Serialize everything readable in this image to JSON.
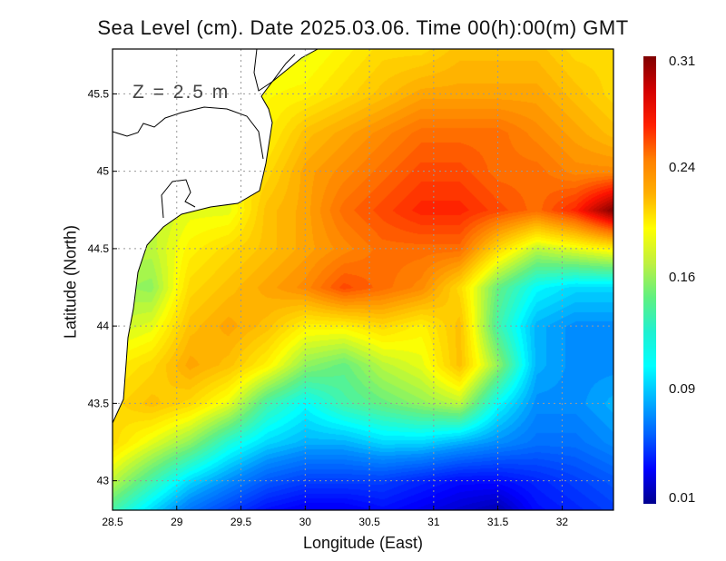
{
  "chart_data": {
    "type": "heatmap",
    "title": "Sea Level (cm). Date 2025.03.06. Time 00(h):00(m) GMT",
    "annotation": "Z = 2.5 m",
    "xlabel": "Longitude (East)",
    "ylabel": "Latitude (North)",
    "xlim": [
      28.5,
      32.4
    ],
    "ylim": [
      42.81,
      45.79
    ],
    "xticks": [
      "28.5",
      "29",
      "29.5",
      "30",
      "30.5",
      "31",
      "31.5",
      "32"
    ],
    "xtick_values": [
      28.5,
      29,
      29.5,
      30,
      30.5,
      31,
      31.5,
      32
    ],
    "yticks": [
      "43",
      "43.5",
      "44",
      "44.5",
      "45",
      "45.5"
    ],
    "ytick_values": [
      43,
      43.5,
      44,
      44.5,
      45,
      45.5
    ],
    "grid": true,
    "colorbar": {
      "ticks": [
        "0.31",
        "0.24",
        "0.16",
        "0.09",
        "0.01"
      ],
      "range": [
        0.01,
        0.31
      ]
    },
    "grid_lon": [
      28.5,
      28.8,
      29.1,
      29.4,
      29.7,
      30.0,
      30.3,
      30.6,
      30.9,
      31.2,
      31.5,
      31.8,
      32.1,
      32.4
    ],
    "grid_lat": [
      45.79,
      45.5,
      45.25,
      45.0,
      44.75,
      44.5,
      44.25,
      44.0,
      43.75,
      43.5,
      43.25,
      43.0,
      42.81
    ],
    "values": [
      [
        null,
        null,
        null,
        null,
        null,
        0.19,
        0.2,
        0.21,
        0.21,
        0.22,
        0.22,
        0.22,
        0.21,
        0.21
      ],
      [
        null,
        null,
        null,
        null,
        null,
        0.2,
        0.21,
        0.22,
        0.23,
        0.23,
        0.23,
        0.23,
        0.22,
        0.21
      ],
      [
        null,
        null,
        null,
        null,
        0.2,
        0.22,
        0.23,
        0.24,
        0.25,
        0.25,
        0.25,
        0.24,
        0.23,
        0.22
      ],
      [
        null,
        null,
        null,
        null,
        0.21,
        0.23,
        0.24,
        0.25,
        0.26,
        0.26,
        0.25,
        0.25,
        0.24,
        0.24
      ],
      [
        null,
        null,
        null,
        0.19,
        0.22,
        0.23,
        0.25,
        0.26,
        0.27,
        0.27,
        0.26,
        0.25,
        0.27,
        0.31
      ],
      [
        null,
        0.18,
        0.2,
        0.21,
        0.22,
        0.23,
        0.24,
        0.25,
        0.25,
        0.25,
        0.21,
        0.18,
        0.19,
        0.2
      ],
      [
        null,
        0.17,
        0.21,
        0.22,
        0.23,
        0.24,
        0.26,
        0.25,
        0.24,
        0.21,
        0.16,
        0.13,
        0.12,
        0.12
      ],
      [
        null,
        0.19,
        0.22,
        0.23,
        0.22,
        0.2,
        0.2,
        0.21,
        0.2,
        0.22,
        0.15,
        0.11,
        0.1,
        0.1
      ],
      [
        null,
        0.21,
        0.23,
        0.22,
        0.2,
        0.17,
        0.16,
        0.18,
        0.19,
        0.22,
        0.17,
        0.11,
        0.1,
        0.1
      ],
      [
        0.21,
        0.22,
        0.21,
        0.19,
        0.15,
        0.13,
        0.15,
        0.16,
        0.17,
        0.18,
        0.13,
        0.1,
        0.1,
        0.11
      ],
      [
        0.21,
        0.19,
        0.17,
        0.14,
        0.12,
        0.11,
        0.11,
        0.12,
        0.12,
        0.11,
        0.1,
        0.09,
        0.09,
        0.1
      ],
      [
        0.18,
        0.15,
        0.12,
        0.1,
        0.08,
        0.07,
        0.07,
        0.07,
        0.06,
        0.05,
        0.05,
        0.06,
        0.07,
        0.08
      ],
      [
        0.15,
        0.12,
        0.09,
        0.07,
        0.05,
        0.04,
        0.04,
        0.05,
        0.04,
        0.03,
        0.02,
        0.05,
        0.06,
        0.07
      ]
    ]
  }
}
